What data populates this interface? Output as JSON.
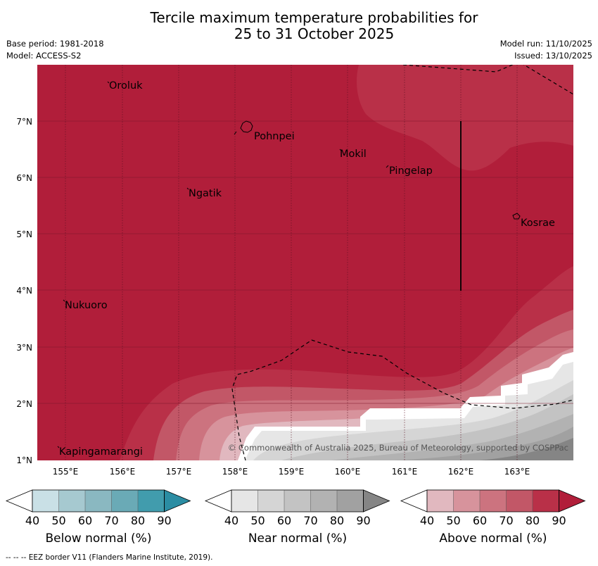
{
  "title": {
    "line1": "Tercile maximum temperature probabilities for",
    "line2": "25 to 31 October 2025"
  },
  "meta": {
    "base_period": "Base period: 1981-2018",
    "model": "Model: ACCESS-S2",
    "model_run": "Model run: 11/10/2025",
    "issued": "Issued: 13/10/2025"
  },
  "map": {
    "lat_labels": [
      "7°N",
      "6°N",
      "5°N",
      "4°N",
      "3°N",
      "2°N",
      "1°N"
    ],
    "lon_labels": [
      "155°E",
      "156°E",
      "157°E",
      "158°E",
      "159°E",
      "160°E",
      "161°E",
      "162°E",
      "163°E"
    ],
    "places": [
      "Oroluk",
      "Pohnpei",
      "Mokil",
      "Pingelap",
      "Ngatik",
      "Kosrae",
      "Nukuoro",
      "Kapingamarangi"
    ],
    "copyright": "© Commonwealth of Australia 2025, Bureau of Meteorology, supported by COSPPac"
  },
  "colorbars": [
    {
      "label": "Below normal (%)",
      "ticks": [
        "40",
        "50",
        "60",
        "70",
        "80",
        "90"
      ],
      "colors": [
        "#ffffff",
        "#c9e0e6",
        "#a6c9d0",
        "#8ab8c1",
        "#6aaab6",
        "#419cad",
        "#2b8da3"
      ]
    },
    {
      "label": "Near normal (%)",
      "ticks": [
        "40",
        "50",
        "60",
        "70",
        "80",
        "90"
      ],
      "colors": [
        "#ffffff",
        "#e6e6e6",
        "#d5d5d5",
        "#c3c3c3",
        "#b2b2b2",
        "#a1a1a1",
        "#858585"
      ]
    },
    {
      "label": "Above normal (%)",
      "ticks": [
        "40",
        "50",
        "60",
        "70",
        "80",
        "90"
      ],
      "colors": [
        "#ffffff",
        "#e1b8bf",
        "#d7939c",
        "#cc737f",
        "#c25767",
        "#b93048",
        "#b11e3a"
      ]
    }
  ],
  "footnote": "--  --  -- EEZ border V11 (Flanders Marine Institute, 2019)."
}
